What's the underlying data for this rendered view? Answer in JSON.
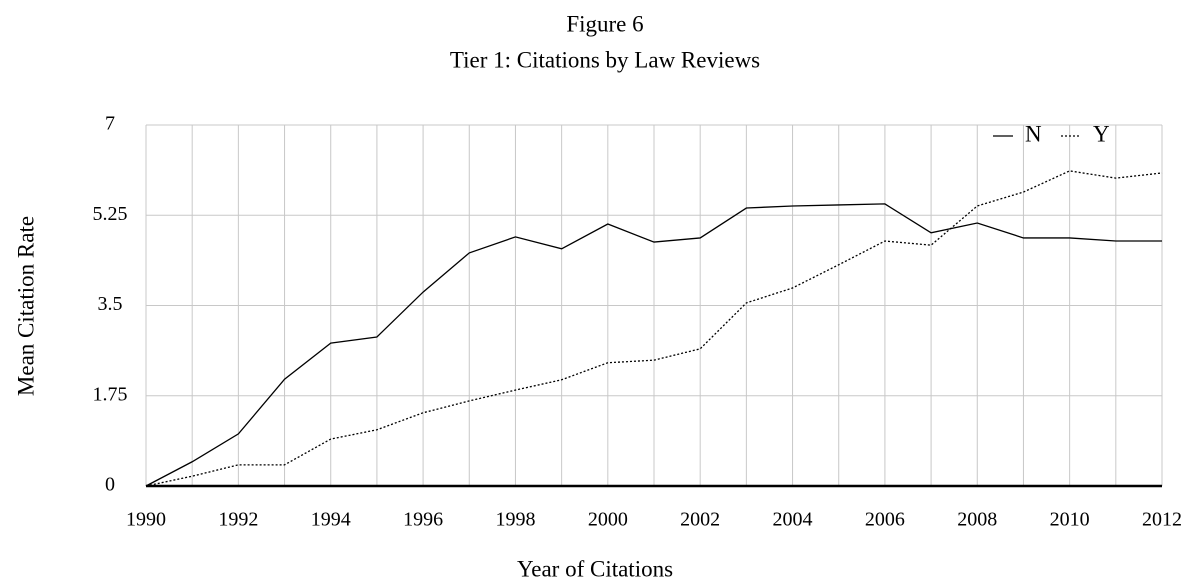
{
  "chart_data": {
    "type": "line",
    "title": "Figure 6",
    "subtitle": "Tier 1: Citations by Law Reviews",
    "xlabel": "Year of Citations",
    "ylabel": "Mean Citation Rate",
    "x": [
      1990,
      1991,
      1992,
      1993,
      1994,
      1995,
      1996,
      1997,
      1998,
      1999,
      2000,
      2001,
      2002,
      2003,
      2004,
      2005,
      2006,
      2007,
      2008,
      2009,
      2010,
      2011,
      2012
    ],
    "series": [
      {
        "name": "N",
        "color": "#000000",
        "line_style": "solid",
        "values": [
          0,
          0.47,
          1.01,
          2.07,
          2.77,
          2.89,
          3.76,
          4.52,
          4.83,
          4.6,
          5.08,
          4.73,
          4.81,
          5.39,
          5.43,
          5.45,
          5.47,
          4.91,
          5.1,
          4.81,
          4.81,
          4.75,
          4.75
        ]
      },
      {
        "name": "Y",
        "color": "#000000",
        "line_style": "dotted",
        "values": [
          0,
          0.19,
          0.41,
          0.41,
          0.91,
          1.09,
          1.42,
          1.65,
          1.86,
          2.06,
          2.39,
          2.44,
          2.66,
          3.55,
          3.84,
          4.29,
          4.75,
          4.67,
          5.43,
          5.7,
          6.11,
          5.97,
          6.07
        ]
      }
    ],
    "xlim": [
      1990,
      2012
    ],
    "xticks": [
      1990,
      1992,
      1994,
      1996,
      1998,
      2000,
      2002,
      2004,
      2006,
      2008,
      2010,
      2012
    ],
    "ylim": [
      0,
      7
    ],
    "yticks": [
      0,
      1.75,
      3.5,
      5.25,
      7
    ],
    "grid": true,
    "legend": "top-right"
  }
}
